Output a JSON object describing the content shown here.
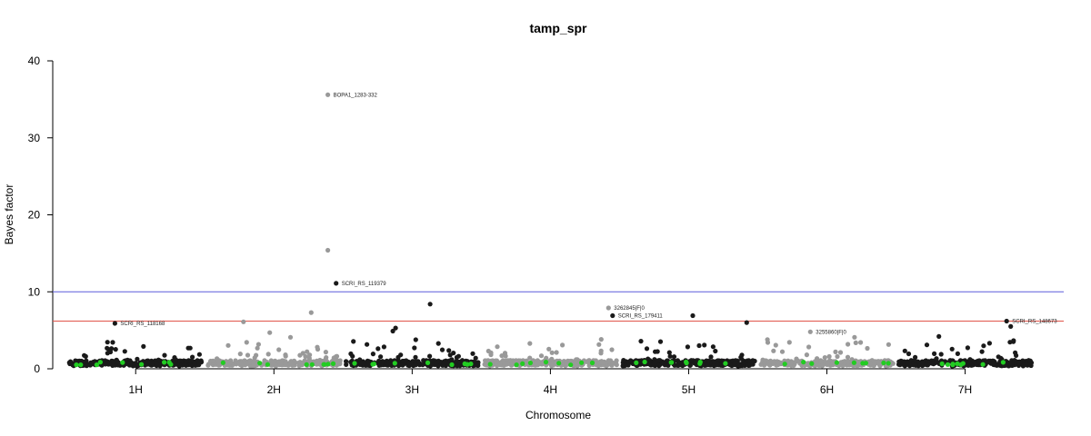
{
  "chart_data": {
    "type": "scatter",
    "title": "tamp_spr",
    "xlabel": "Chromosome",
    "ylabel": "Bayes factor",
    "ylim": [
      0,
      40
    ],
    "yticks": [
      0,
      10,
      20,
      30,
      40
    ],
    "xlim": [
      0.4,
      7.7
    ],
    "chromosomes": [
      {
        "label": "1H",
        "start": 0.5,
        "end": 1.5,
        "center": 1.0,
        "color": "#1a1a1a"
      },
      {
        "label": "2H",
        "start": 1.5,
        "end": 2.5,
        "center": 2.0,
        "color": "#999999"
      },
      {
        "label": "3H",
        "start": 2.5,
        "end": 3.5,
        "center": 3.0,
        "color": "#1a1a1a"
      },
      {
        "label": "4H",
        "start": 3.5,
        "end": 4.5,
        "center": 4.0,
        "color": "#999999"
      },
      {
        "label": "5H",
        "start": 4.5,
        "end": 5.5,
        "center": 5.0,
        "color": "#1a1a1a"
      },
      {
        "label": "6H",
        "start": 5.5,
        "end": 6.5,
        "center": 6.0,
        "color": "#999999"
      },
      {
        "label": "7H",
        "start": 6.5,
        "end": 7.5,
        "center": 7.0,
        "color": "#1a1a1a"
      }
    ],
    "thresholds": [
      {
        "value": 10,
        "color": "#5b5bdb"
      },
      {
        "value": 6.2,
        "color": "#e0554a"
      }
    ],
    "highlight_color": "#22cc22",
    "labeled_points": [
      {
        "x": 2.39,
        "y": 35.6,
        "label": "BOPA1_1283-332",
        "color": "#999999"
      },
      {
        "x": 2.39,
        "y": 15.4,
        "label": "",
        "color": "#999999"
      },
      {
        "x": 2.45,
        "y": 11.1,
        "label": "SCRI_RS_119379",
        "color": "#1a1a1a"
      },
      {
        "x": 3.13,
        "y": 8.4,
        "label": "",
        "color": "#1a1a1a"
      },
      {
        "x": 2.27,
        "y": 7.3,
        "label": "",
        "color": "#999999"
      },
      {
        "x": 4.42,
        "y": 7.9,
        "label": "3262845|F|0",
        "color": "#999999"
      },
      {
        "x": 4.45,
        "y": 6.9,
        "label": "SCRI_RS_179411",
        "color": "#1a1a1a"
      },
      {
        "x": 5.03,
        "y": 6.9,
        "label": "",
        "color": "#1a1a1a"
      },
      {
        "x": 0.85,
        "y": 5.9,
        "label": "SCRI_RS_118168",
        "color": "#1a1a1a"
      },
      {
        "x": 1.78,
        "y": 6.1,
        "label": "",
        "color": "#999999"
      },
      {
        "x": 5.42,
        "y": 6.0,
        "label": "",
        "color": "#1a1a1a"
      },
      {
        "x": 5.88,
        "y": 4.8,
        "label": "3255860|F|0",
        "color": "#999999"
      },
      {
        "x": 7.3,
        "y": 6.2,
        "label": "SCRI_RS_148673",
        "color": "#1a1a1a"
      },
      {
        "x": 7.33,
        "y": 5.5,
        "label": "",
        "color": "#1a1a1a"
      },
      {
        "x": 2.88,
        "y": 5.3,
        "label": "",
        "color": "#1a1a1a"
      },
      {
        "x": 2.86,
        "y": 4.9,
        "label": "",
        "color": "#1a1a1a"
      },
      {
        "x": 1.97,
        "y": 4.7,
        "label": "",
        "color": "#999999"
      },
      {
        "x": 5.57,
        "y": 3.8,
        "label": "",
        "color": "#999999"
      },
      {
        "x": 6.81,
        "y": 4.2,
        "label": "",
        "color": "#1a1a1a"
      },
      {
        "x": 6.2,
        "y": 4.1,
        "label": "",
        "color": "#999999"
      },
      {
        "x": 2.12,
        "y": 4.1,
        "label": "",
        "color": "#999999"
      }
    ]
  }
}
